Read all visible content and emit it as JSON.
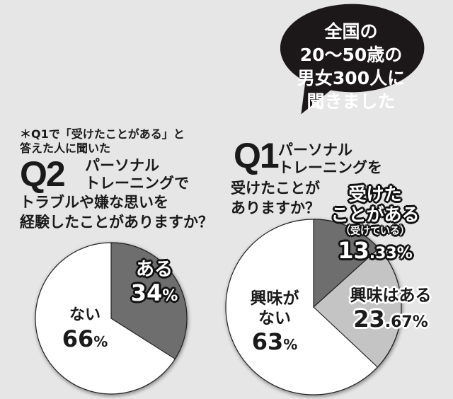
{
  "callout": {
    "lines": [
      "全国の",
      "20〜50歳の",
      "男女300人に",
      "聞きました"
    ]
  },
  "q2": {
    "note_lines": [
      "＊Q1で「受けたことがある」と",
      "答えた人に聞いた"
    ],
    "number": "Q2",
    "title_lines": [
      "パーソナル",
      "トレーニングで",
      "トラブルや嫌な思いを",
      "経験したことがありますか？"
    ],
    "slices": [
      {
        "label": "ある",
        "value": "34",
        "unit": "%"
      },
      {
        "label": "ない",
        "value": "66",
        "unit": "%"
      }
    ]
  },
  "q1": {
    "number": "Q1",
    "title_lines": [
      "パーソナル",
      "トレーニングを",
      "受けたことが",
      "ありますか？"
    ],
    "slices": [
      {
        "label_lines": [
          "受けた",
          "ことがある"
        ],
        "sub": "（受けている）",
        "value_int": "13",
        "value_dec": ".33",
        "unit": "%"
      },
      {
        "label": "興味はある",
        "value_int": "23",
        "value_dec": ".67",
        "unit": "%"
      },
      {
        "label_lines": [
          "興味が",
          "ない"
        ],
        "value": "63",
        "unit": "%"
      }
    ]
  },
  "colors": {
    "background": "#e6e6e6",
    "dark_slice": "#6e6e6e",
    "light_slice": "#c4c4c4",
    "white_slice": "#ffffff",
    "callout": "#1c1718"
  },
  "chart_data": [
    {
      "type": "pie",
      "title": "Q2 パーソナルトレーニングでトラブルや嫌な思いを経験したことがありますか？",
      "note": "＊Q1で「受けたことがある」と答えた人に聞いた",
      "categories": [
        "ある",
        "ない"
      ],
      "values": [
        34,
        66
      ],
      "unit": "%"
    },
    {
      "type": "pie",
      "title": "Q1 パーソナルトレーニングを受けたことがありますか？",
      "note": "全国の20〜50歳の男女300人に聞きました",
      "categories": [
        "受けたことがある（受けている）",
        "興味はある",
        "興味がない"
      ],
      "values": [
        13.33,
        23.67,
        63
      ],
      "unit": "%"
    }
  ]
}
